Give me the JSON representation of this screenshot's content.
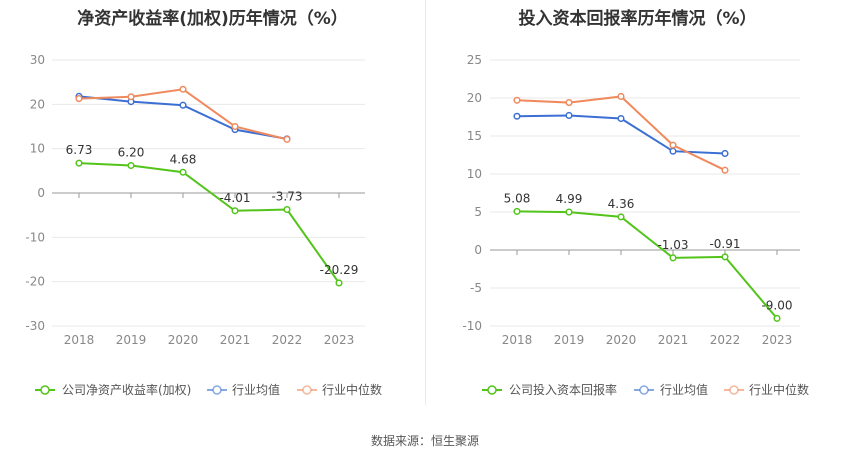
{
  "source_label": "数据来源：恒生聚源",
  "colors": {
    "company": "#52c41a",
    "avg": "#3b6fd4",
    "median": "#f08a5d",
    "grid": "#e8e8e8"
  },
  "chart_data": [
    {
      "type": "line",
      "title": "净资产收益率(加权)历年情况（%）",
      "categories": [
        "2018",
        "2019",
        "2020",
        "2021",
        "2022",
        "2023"
      ],
      "ylim": [
        -30,
        30
      ],
      "yticks": [
        30,
        20,
        10,
        0,
        -10,
        -20,
        -30
      ],
      "grid": true,
      "legend": "bottom",
      "series": [
        {
          "name": "公司净资产收益率(加权)",
          "values": [
            6.73,
            6.2,
            4.68,
            -4.01,
            -3.73,
            -20.29
          ],
          "labels": [
            "6.73",
            "6.20",
            "4.68",
            "-4.01",
            "-3.73",
            "-20.29"
          ]
        },
        {
          "name": "行业均值",
          "values": [
            21.8,
            20.6,
            19.8,
            14.3,
            12.2,
            null
          ]
        },
        {
          "name": "行业中位数",
          "values": [
            21.3,
            21.7,
            23.4,
            15.0,
            12.1,
            null
          ]
        }
      ]
    },
    {
      "type": "line",
      "title": "投入资本回报率历年情况（%）",
      "categories": [
        "2018",
        "2019",
        "2020",
        "2021",
        "2022",
        "2023"
      ],
      "ylim": [
        -10,
        25
      ],
      "yticks": [
        25,
        20,
        15,
        10,
        5,
        0,
        -5,
        -10
      ],
      "grid": true,
      "legend": "bottom",
      "series": [
        {
          "name": "公司投入资本回报率",
          "values": [
            5.08,
            4.99,
            4.36,
            -1.03,
            -0.91,
            -9.0
          ],
          "labels": [
            "5.08",
            "4.99",
            "4.36",
            "-1.03",
            "-0.91",
            "-9.00"
          ]
        },
        {
          "name": "行业均值",
          "values": [
            17.6,
            17.7,
            17.3,
            13.0,
            12.7,
            null
          ]
        },
        {
          "name": "行业中位数",
          "values": [
            19.7,
            19.4,
            20.2,
            13.8,
            10.5,
            null
          ]
        }
      ]
    }
  ]
}
